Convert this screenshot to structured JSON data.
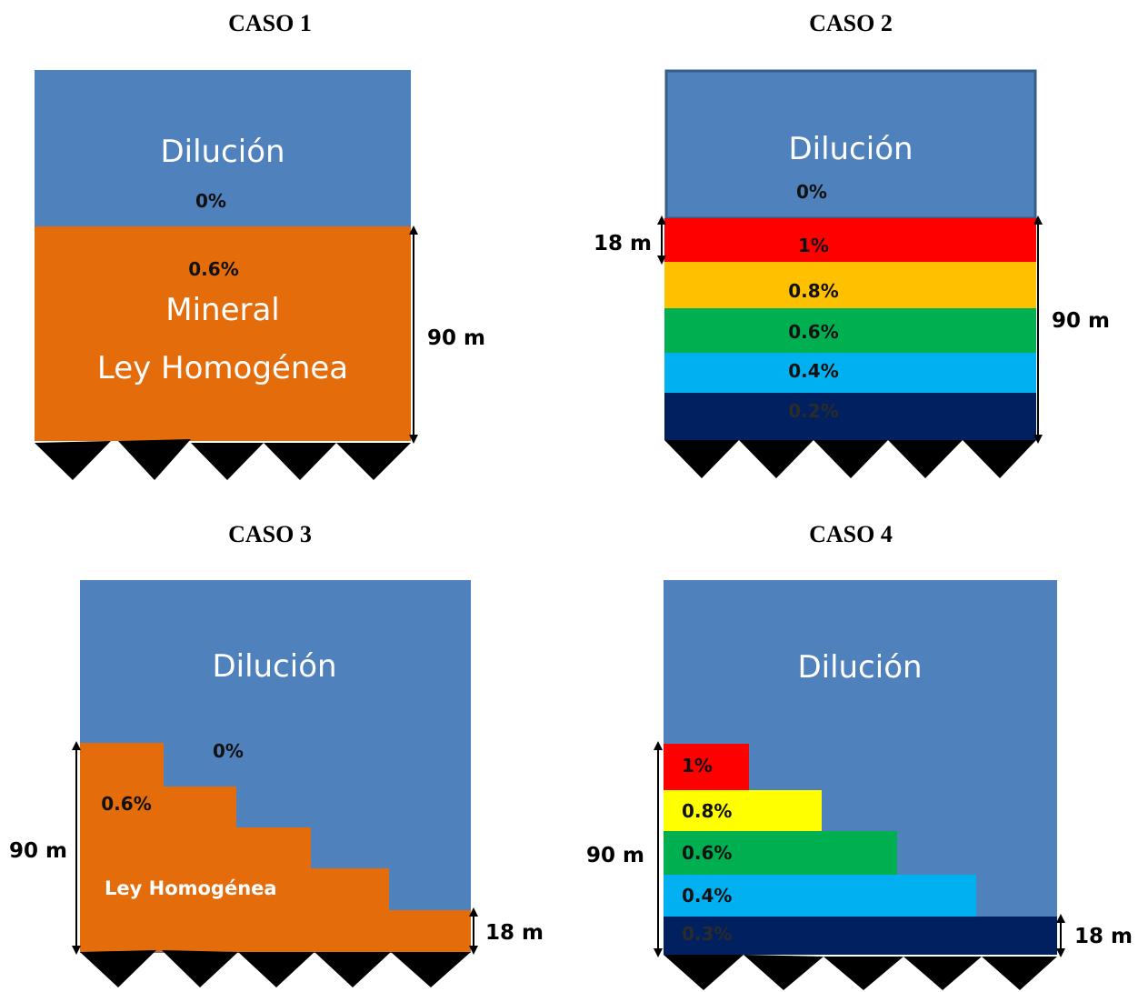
{
  "colors": {
    "dilution": "#4f81bd",
    "orange": "#e46c0a",
    "red": "#ff0000",
    "amber": "#ffc000",
    "yellow": "#ffff00",
    "green": "#00b050",
    "lightblue": "#00b0f0",
    "navy": "#002060",
    "black": "#000000"
  },
  "case1": {
    "title": "CASO 1",
    "dilution_label": "Dilución",
    "dilution_grade": "0%",
    "ore_grade": "0.6%",
    "ore_label_1": "Mineral",
    "ore_label_2": "Ley Homogénea",
    "height_label": "90 m"
  },
  "case2": {
    "title": "CASO 2",
    "dilution_label": "Dilución",
    "dilution_grade": "0%",
    "layer_height_label": "18 m",
    "height_label": "90 m",
    "layers": [
      "1%",
      "0.8%",
      "0.6%",
      "0.4%",
      "0.2%"
    ]
  },
  "case3": {
    "title": "CASO 3",
    "dilution_label": "Dilución",
    "dilution_grade": "0%",
    "ore_grade": "0.6%",
    "ore_label": "Ley Homogénea",
    "height_label": "90 m",
    "step_label": "18 m"
  },
  "case4": {
    "title": "CASO 4",
    "dilution_label": "Dilución",
    "height_label": "90 m",
    "step_label": "18 m",
    "layers": [
      "1%",
      "0.8%",
      "0.6%",
      "0.4%",
      "0.3%"
    ]
  }
}
